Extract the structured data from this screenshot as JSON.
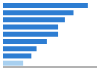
{
  "chart_data": {
    "type": "bar",
    "orientation": "horizontal",
    "categories": [
      null,
      null,
      null,
      null,
      null,
      null,
      null,
      null,
      null
    ],
    "values": [
      6.32,
      5.25,
      4.61,
      4.1,
      4.1,
      3.27,
      2.5,
      2.11,
      1.5
    ],
    "colors": [
      "#2d7dd2",
      "#2d7dd2",
      "#2d7dd2",
      "#2d7dd2",
      "#2d7dd2",
      "#2d7dd2",
      "#2d7dd2",
      "#2d7dd2",
      "#a8d0f0"
    ],
    "xlim": [
      0,
      7
    ],
    "tick_labels": false
  }
}
